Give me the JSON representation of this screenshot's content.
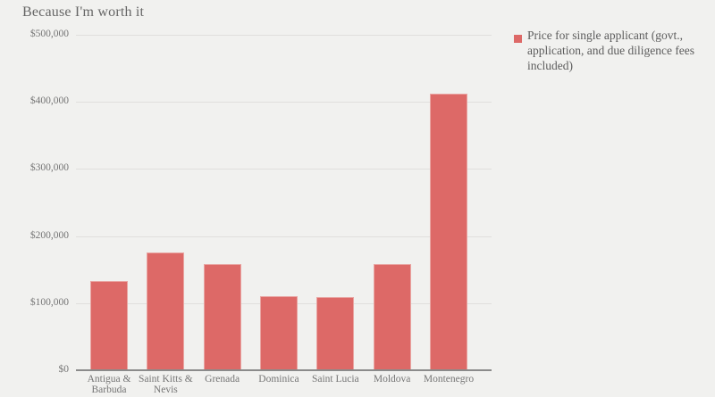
{
  "colors": {
    "background": "#f1f1ef",
    "bar": "#dd6967",
    "bar_border": "#e9a5a2",
    "grid": "#e0dfdd",
    "axis": "#8b8b8b",
    "title_text": "#666666",
    "tick_text": "#757575",
    "legend_text": "#5c5c5c"
  },
  "chart_data": {
    "type": "bar",
    "title": "Because I'm worth it",
    "categories": [
      "Antigua & Barbuda",
      "Saint Kitts & Nevis",
      "Grenada",
      "Dominica",
      "Saint Lucia",
      "Moldova",
      "Montenegro"
    ],
    "series": [
      {
        "name": "Price for single applicant (govt., application, and due diligence fees included)",
        "color": "#dd6967",
        "values": [
          133000,
          175000,
          158000,
          111000,
          109000,
          158000,
          412000
        ]
      }
    ],
    "xlabel": "",
    "ylabel": "",
    "ylim": [
      0,
      500000
    ],
    "yticks": [
      0,
      100000,
      200000,
      300000,
      400000,
      500000
    ],
    "ytick_labels": [
      "$0",
      "$100,000",
      "$200,000",
      "$300,000",
      "$400,000",
      "$500,000"
    ],
    "grid": "horizontal",
    "legend_position": "top-right"
  },
  "legend": {
    "label": "Price for single applicant (govt., application, and due diligence fees included)"
  }
}
